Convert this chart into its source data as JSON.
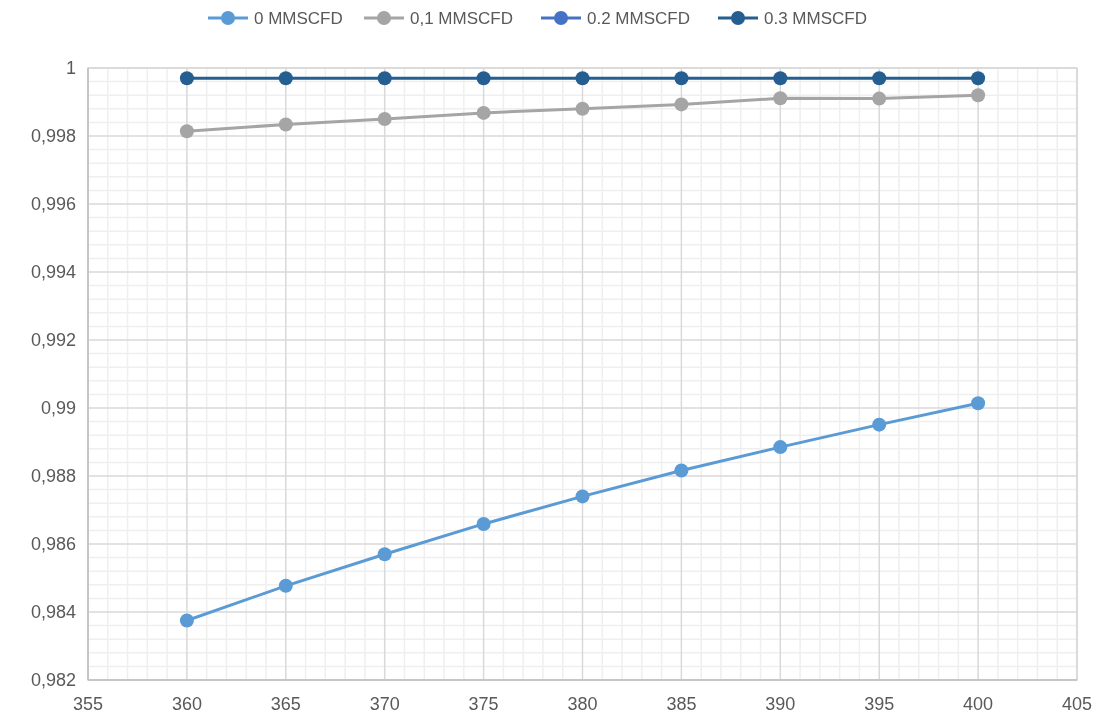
{
  "chart_data": {
    "type": "line",
    "x": [
      360,
      365,
      370,
      375,
      380,
      385,
      390,
      395,
      400
    ],
    "series": [
      {
        "name": "0 MMSCFD",
        "color": "#5b9bd5",
        "values": [
          0.98375,
          0.98477,
          0.9857,
          0.98659,
          0.9874,
          0.98816,
          0.98885,
          0.98951,
          0.99014
        ]
      },
      {
        "name": "0,1 MMSCFD",
        "color": "#a5a5a5",
        "values": [
          0.99814,
          0.99834,
          0.9985,
          0.99868,
          0.9988,
          0.99893,
          0.99911,
          0.9991,
          0.9992
        ]
      },
      {
        "name": "0.2 MMSCFD",
        "color": "#4472c4",
        "values": [
          null,
          null,
          null,
          null,
          null,
          null,
          null,
          null,
          null
        ]
      },
      {
        "name": "0.3 MMSCFD",
        "color": "#255e91",
        "values": [
          0.9997,
          0.9997,
          0.9997,
          0.9997,
          0.9997,
          0.9997,
          0.9997,
          0.9997,
          0.9997
        ]
      }
    ],
    "xlim": [
      355,
      405
    ],
    "xticks": [
      355,
      360,
      365,
      370,
      375,
      380,
      385,
      390,
      395,
      400,
      405
    ],
    "ylim": [
      0.982,
      1
    ],
    "yticks": [
      {
        "value": 0.982,
        "label": "0,982"
      },
      {
        "value": 0.984,
        "label": "0,984"
      },
      {
        "value": 0.986,
        "label": "0,986"
      },
      {
        "value": 0.988,
        "label": "0,988"
      },
      {
        "value": 0.99,
        "label": "0,99"
      },
      {
        "value": 0.992,
        "label": "0,992"
      },
      {
        "value": 0.994,
        "label": "0,994"
      },
      {
        "value": 0.996,
        "label": "0,996"
      },
      {
        "value": 0.998,
        "label": "0,998"
      },
      1
    ],
    "grid": true,
    "legend": "top",
    "marker": "circle",
    "line_style": "solid"
  }
}
